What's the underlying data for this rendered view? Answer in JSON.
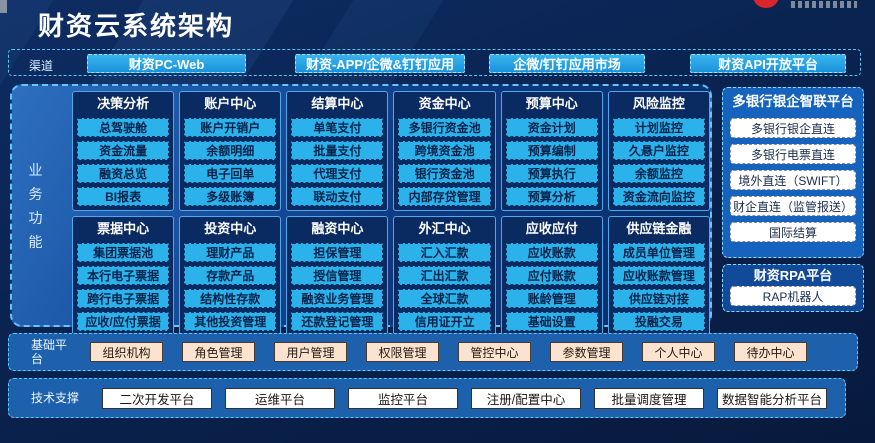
{
  "header": {
    "title": "财资云系统架构"
  },
  "channels": {
    "label": "渠道",
    "items": [
      "财资PC-Web",
      "财资-APP/企微&钉钉应用",
      "企微/钉钉应用市场",
      "财资API开放平台"
    ]
  },
  "business": {
    "label": "业务功能",
    "groups": [
      {
        "title": "决策分析",
        "items": [
          "总驾驶舱",
          "资金流量",
          "融资总览",
          "BI报表"
        ]
      },
      {
        "title": "账户中心",
        "items": [
          "账户开销户",
          "余额明细",
          "电子回单",
          "多级账簿"
        ]
      },
      {
        "title": "结算中心",
        "items": [
          "单笔支付",
          "批量支付",
          "代理支付",
          "联动支付"
        ]
      },
      {
        "title": "资金中心",
        "items": [
          "多银行资金池",
          "跨境资金池",
          "银行资金池",
          "内部存贷管理"
        ]
      },
      {
        "title": "预算中心",
        "items": [
          "资金计划",
          "预算编制",
          "预算执行",
          "预算分析"
        ]
      },
      {
        "title": "风险监控",
        "items": [
          "计划监控",
          "久悬户监控",
          "余额监控",
          "资金流向监控"
        ]
      },
      {
        "title": "票据中心",
        "items": [
          "集团票据池",
          "本行电子票据",
          "跨行电子票据",
          "应收/应付票据"
        ]
      },
      {
        "title": "投资中心",
        "items": [
          "理财产品",
          "存款产品",
          "结构性存款",
          "其他投资管理"
        ]
      },
      {
        "title": "融资中心",
        "items": [
          "担保管理",
          "授信管理",
          "融资业务管理",
          "还款登记管理"
        ]
      },
      {
        "title": "外汇中心",
        "items": [
          "汇入汇款",
          "汇出汇款",
          "全球汇款",
          "信用证开立"
        ]
      },
      {
        "title": "应收应付",
        "items": [
          "应收账款",
          "应付账款",
          "账龄管理",
          "基础设置"
        ]
      },
      {
        "title": "供应链金融",
        "items": [
          "成员单位管理",
          "应收账款管理",
          "供应链对接",
          "投融交易"
        ]
      }
    ]
  },
  "bank_platform": {
    "title": "多银行银企智联平台",
    "items": [
      "多银行银企直连",
      "多银行电票直连",
      "境外直连（SWIFT）",
      "财企直连（监管报送）",
      "国际结算"
    ]
  },
  "rpa_platform": {
    "title": "财资RPA平台",
    "items": [
      "RAP机器人"
    ]
  },
  "base_platform": {
    "label": "基础平台",
    "items": [
      "组织机构",
      "角色管理",
      "用户管理",
      "权限管理",
      "管控中心",
      "参数管理",
      "个人中心",
      "待办中心"
    ]
  },
  "tech_support": {
    "label": "技术支撑",
    "items": [
      "二次开发平台",
      "运维平台",
      "监控平台",
      "注册/配置中心",
      "批量调度管理",
      "数据智能分析平台"
    ]
  },
  "colors": {
    "background_navy": "#0a2350",
    "panel_blue": "#1a55a4",
    "cyan_button": "#2bb2ea",
    "channel_button": "#229fe3",
    "bank_panel_blue": "#1563bd",
    "row_blue": "#1d60ab",
    "peach_button": "#fbe3cf",
    "border_cyan_dashed": "#5ec8f8",
    "brand_red": "#d8262c"
  }
}
